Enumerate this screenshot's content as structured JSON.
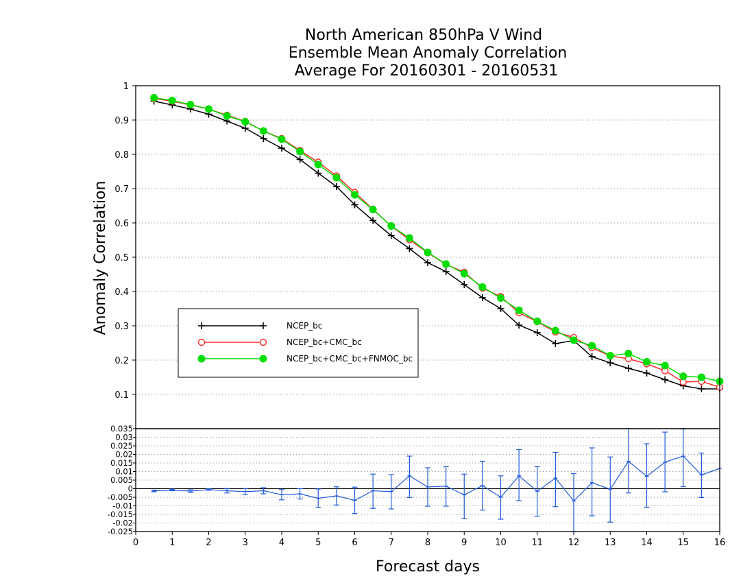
{
  "chart_data": [
    {
      "type": "line",
      "title": [
        "North American 850hPa V Wind",
        "Ensemble Mean Anomaly Correlation",
        "Average For 20160301 - 20160531"
      ],
      "xlabel": "Forecast days",
      "ylabel": "Anomaly Correlation",
      "xlim": [
        0,
        16
      ],
      "ylim": [
        0,
        1
      ],
      "xticks": [
        "0",
        "1",
        "2",
        "3",
        "4",
        "5",
        "6",
        "7",
        "8",
        "9",
        "10",
        "11",
        "12",
        "13",
        "14",
        "15",
        "16"
      ],
      "yticks": [
        "0.1",
        "0.2",
        "0.3",
        "0.4",
        "0.5",
        "0.6",
        "0.7",
        "0.8",
        "0.9",
        "1"
      ],
      "ytick_values": [
        0.1,
        0.2,
        0.3,
        0.4,
        0.5,
        0.6,
        0.7,
        0.8,
        0.9,
        1.0
      ],
      "grid": true,
      "legend_position": "lower-left",
      "x": [
        0.5,
        1,
        1.5,
        2,
        2.5,
        3,
        3.5,
        4,
        4.5,
        5,
        5.5,
        6,
        6.5,
        7,
        7.5,
        8,
        8.5,
        9,
        9.5,
        10,
        10.5,
        11,
        11.5,
        12,
        12.5,
        13,
        13.5,
        14,
        14.5,
        15,
        15.5,
        16
      ],
      "series": [
        {
          "name": "NCEP_bc",
          "color": "#000000",
          "marker": "plus",
          "values": [
            0.955,
            0.944,
            0.932,
            0.917,
            0.897,
            0.876,
            0.846,
            0.818,
            0.785,
            0.745,
            0.706,
            0.653,
            0.607,
            0.563,
            0.525,
            0.484,
            0.458,
            0.42,
            0.382,
            0.35,
            0.302,
            0.28,
            0.248,
            0.257,
            0.21,
            0.192,
            0.176,
            0.162,
            0.143,
            0.125,
            0.116,
            0.116
          ]
        },
        {
          "name": "NCEP_bc+CMC_bc",
          "color": "#ff2a2a",
          "marker": "open-circle",
          "values": [
            0.963,
            0.955,
            0.944,
            0.932,
            0.914,
            0.896,
            0.868,
            0.846,
            0.811,
            0.777,
            0.737,
            0.689,
            0.64,
            0.591,
            0.551,
            0.513,
            0.479,
            0.456,
            0.41,
            0.385,
            0.338,
            0.312,
            0.282,
            0.266,
            0.236,
            0.212,
            0.204,
            0.189,
            0.169,
            0.136,
            0.138,
            0.121
          ]
        },
        {
          "name": "NCEP_bc+CMC_bc+FNMOC_bc",
          "color": "#00dd00",
          "marker": "filled-circle",
          "values": [
            0.965,
            0.957,
            0.945,
            0.932,
            0.912,
            0.895,
            0.868,
            0.844,
            0.808,
            0.77,
            0.732,
            0.682,
            0.639,
            0.591,
            0.556,
            0.514,
            0.48,
            0.452,
            0.413,
            0.381,
            0.345,
            0.313,
            0.286,
            0.258,
            0.242,
            0.213,
            0.219,
            0.195,
            0.184,
            0.153,
            0.15,
            0.138
          ]
        }
      ]
    },
    {
      "type": "line",
      "subtype": "difference-with-error-bars",
      "xlim": [
        0,
        16
      ],
      "ylim": [
        -0.025,
        0.035
      ],
      "xticks": [
        "0",
        "1",
        "2",
        "3",
        "4",
        "5",
        "6",
        "7",
        "8",
        "9",
        "10",
        "11",
        "12",
        "13",
        "14",
        "15",
        "16"
      ],
      "yticks": [
        "0.035",
        "0.03",
        "0.025",
        "0.02",
        "0.015",
        "0.01",
        "0.005",
        "0",
        "-0.005",
        "-0.01",
        "-0.015",
        "-0.02",
        "-0.025"
      ],
      "ytick_values": [
        0.035,
        0.03,
        0.025,
        0.02,
        0.015,
        0.01,
        0.005,
        0,
        -0.005,
        -0.01,
        -0.015,
        -0.02,
        -0.025
      ],
      "grid": true,
      "zero_line": true,
      "x": [
        0.5,
        1,
        1.5,
        2,
        2.5,
        3,
        3.5,
        4,
        4.5,
        5,
        5.5,
        6,
        6.5,
        7,
        7.5,
        8,
        8.5,
        9,
        9.5,
        10,
        10.5,
        11,
        11.5,
        12,
        12.5,
        13,
        13.5,
        14,
        14.5,
        15,
        15.5,
        16
      ],
      "series": [
        {
          "color": "#1e5adc",
          "values": [
            -0.0013,
            -0.0008,
            -0.0014,
            -0.0005,
            -0.0012,
            -0.0017,
            -0.0012,
            -0.0035,
            -0.003,
            -0.0056,
            -0.0042,
            -0.0068,
            -0.0012,
            -0.0017,
            0.0075,
            0.001,
            0.0015,
            -0.0036,
            0.0018,
            -0.005,
            0.0075,
            -0.0015,
            0.0062,
            -0.0072,
            0.0035,
            -0.0003,
            0.016,
            0.0072,
            0.0155,
            0.019,
            0.008,
            0.0118
          ],
          "error_low": [
            -0.0018,
            -0.0012,
            -0.0022,
            -0.0009,
            -0.0025,
            -0.0035,
            -0.003,
            -0.0065,
            -0.006,
            -0.011,
            -0.0095,
            -0.0145,
            -0.0115,
            -0.0118,
            -0.0052,
            -0.0102,
            -0.0102,
            -0.0175,
            -0.0125,
            -0.0178,
            -0.007,
            -0.016,
            -0.0105,
            -0.025,
            -0.0158,
            -0.0195,
            -0.0025,
            -0.0108,
            -0.0018,
            0.0013,
            -0.0052,
            null
          ],
          "error_high": [
            -0.0008,
            -0.0003,
            -0.0006,
            -0.0001,
            0.0001,
            0.0001,
            0.0006,
            -0.0005,
            0.0,
            -0.0002,
            0.0011,
            0.0009,
            0.0085,
            0.0082,
            0.019,
            0.0122,
            0.0128,
            0.0085,
            0.016,
            0.0075,
            0.0228,
            0.0128,
            0.0212,
            0.0088,
            0.0238,
            0.0185,
            0.035,
            0.0262,
            0.033,
            0.0348,
            0.0208,
            null
          ]
        }
      ]
    }
  ]
}
